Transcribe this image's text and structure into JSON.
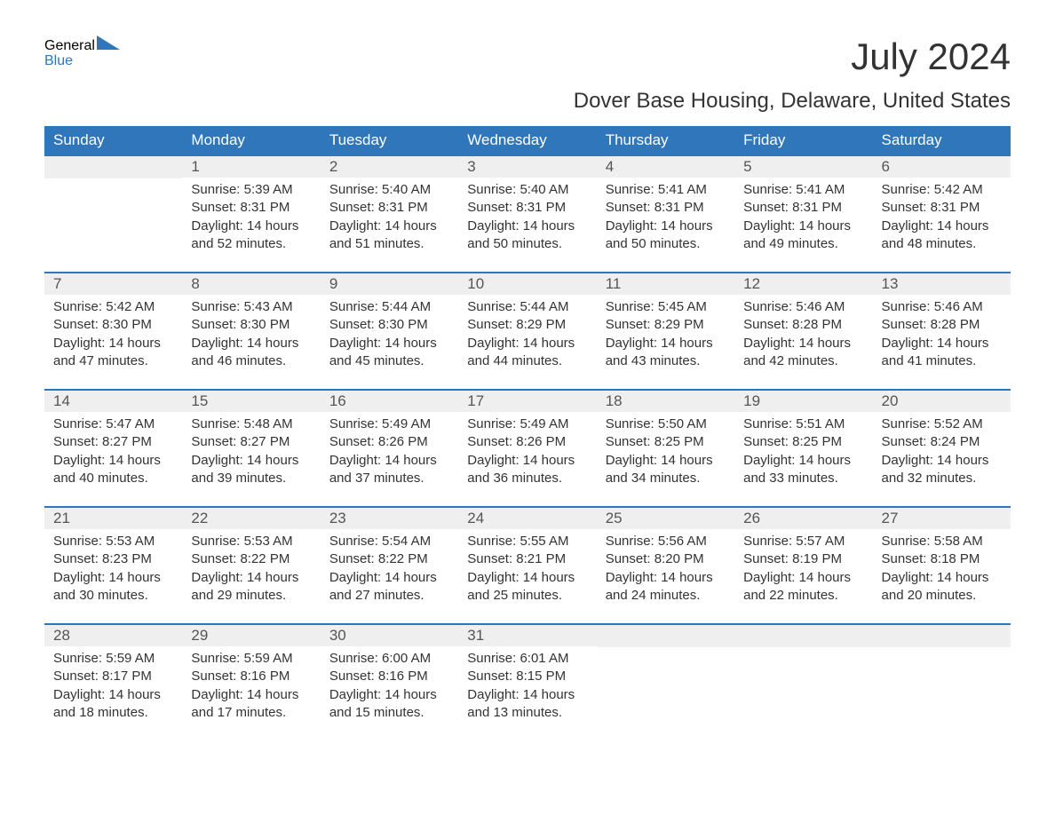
{
  "brand": {
    "word1": "General",
    "word2": "Blue"
  },
  "title": "July 2024",
  "location": "Dover Base Housing, Delaware, United States",
  "colors": {
    "accent": "#2f76bb",
    "headerText": "#ffffff",
    "dayBg": "#efefef",
    "text": "#333333"
  },
  "weekdays": [
    "Sunday",
    "Monday",
    "Tuesday",
    "Wednesday",
    "Thursday",
    "Friday",
    "Saturday"
  ],
  "weeks": [
    [
      null,
      {
        "n": "1",
        "sr": "Sunrise: 5:39 AM",
        "ss": "Sunset: 8:31 PM",
        "d1": "Daylight: 14 hours",
        "d2": "and 52 minutes."
      },
      {
        "n": "2",
        "sr": "Sunrise: 5:40 AM",
        "ss": "Sunset: 8:31 PM",
        "d1": "Daylight: 14 hours",
        "d2": "and 51 minutes."
      },
      {
        "n": "3",
        "sr": "Sunrise: 5:40 AM",
        "ss": "Sunset: 8:31 PM",
        "d1": "Daylight: 14 hours",
        "d2": "and 50 minutes."
      },
      {
        "n": "4",
        "sr": "Sunrise: 5:41 AM",
        "ss": "Sunset: 8:31 PM",
        "d1": "Daylight: 14 hours",
        "d2": "and 50 minutes."
      },
      {
        "n": "5",
        "sr": "Sunrise: 5:41 AM",
        "ss": "Sunset: 8:31 PM",
        "d1": "Daylight: 14 hours",
        "d2": "and 49 minutes."
      },
      {
        "n": "6",
        "sr": "Sunrise: 5:42 AM",
        "ss": "Sunset: 8:31 PM",
        "d1": "Daylight: 14 hours",
        "d2": "and 48 minutes."
      }
    ],
    [
      {
        "n": "7",
        "sr": "Sunrise: 5:42 AM",
        "ss": "Sunset: 8:30 PM",
        "d1": "Daylight: 14 hours",
        "d2": "and 47 minutes."
      },
      {
        "n": "8",
        "sr": "Sunrise: 5:43 AM",
        "ss": "Sunset: 8:30 PM",
        "d1": "Daylight: 14 hours",
        "d2": "and 46 minutes."
      },
      {
        "n": "9",
        "sr": "Sunrise: 5:44 AM",
        "ss": "Sunset: 8:30 PM",
        "d1": "Daylight: 14 hours",
        "d2": "and 45 minutes."
      },
      {
        "n": "10",
        "sr": "Sunrise: 5:44 AM",
        "ss": "Sunset: 8:29 PM",
        "d1": "Daylight: 14 hours",
        "d2": "and 44 minutes."
      },
      {
        "n": "11",
        "sr": "Sunrise: 5:45 AM",
        "ss": "Sunset: 8:29 PM",
        "d1": "Daylight: 14 hours",
        "d2": "and 43 minutes."
      },
      {
        "n": "12",
        "sr": "Sunrise: 5:46 AM",
        "ss": "Sunset: 8:28 PM",
        "d1": "Daylight: 14 hours",
        "d2": "and 42 minutes."
      },
      {
        "n": "13",
        "sr": "Sunrise: 5:46 AM",
        "ss": "Sunset: 8:28 PM",
        "d1": "Daylight: 14 hours",
        "d2": "and 41 minutes."
      }
    ],
    [
      {
        "n": "14",
        "sr": "Sunrise: 5:47 AM",
        "ss": "Sunset: 8:27 PM",
        "d1": "Daylight: 14 hours",
        "d2": "and 40 minutes."
      },
      {
        "n": "15",
        "sr": "Sunrise: 5:48 AM",
        "ss": "Sunset: 8:27 PM",
        "d1": "Daylight: 14 hours",
        "d2": "and 39 minutes."
      },
      {
        "n": "16",
        "sr": "Sunrise: 5:49 AM",
        "ss": "Sunset: 8:26 PM",
        "d1": "Daylight: 14 hours",
        "d2": "and 37 minutes."
      },
      {
        "n": "17",
        "sr": "Sunrise: 5:49 AM",
        "ss": "Sunset: 8:26 PM",
        "d1": "Daylight: 14 hours",
        "d2": "and 36 minutes."
      },
      {
        "n": "18",
        "sr": "Sunrise: 5:50 AM",
        "ss": "Sunset: 8:25 PM",
        "d1": "Daylight: 14 hours",
        "d2": "and 34 minutes."
      },
      {
        "n": "19",
        "sr": "Sunrise: 5:51 AM",
        "ss": "Sunset: 8:25 PM",
        "d1": "Daylight: 14 hours",
        "d2": "and 33 minutes."
      },
      {
        "n": "20",
        "sr": "Sunrise: 5:52 AM",
        "ss": "Sunset: 8:24 PM",
        "d1": "Daylight: 14 hours",
        "d2": "and 32 minutes."
      }
    ],
    [
      {
        "n": "21",
        "sr": "Sunrise: 5:53 AM",
        "ss": "Sunset: 8:23 PM",
        "d1": "Daylight: 14 hours",
        "d2": "and 30 minutes."
      },
      {
        "n": "22",
        "sr": "Sunrise: 5:53 AM",
        "ss": "Sunset: 8:22 PM",
        "d1": "Daylight: 14 hours",
        "d2": "and 29 minutes."
      },
      {
        "n": "23",
        "sr": "Sunrise: 5:54 AM",
        "ss": "Sunset: 8:22 PM",
        "d1": "Daylight: 14 hours",
        "d2": "and 27 minutes."
      },
      {
        "n": "24",
        "sr": "Sunrise: 5:55 AM",
        "ss": "Sunset: 8:21 PM",
        "d1": "Daylight: 14 hours",
        "d2": "and 25 minutes."
      },
      {
        "n": "25",
        "sr": "Sunrise: 5:56 AM",
        "ss": "Sunset: 8:20 PM",
        "d1": "Daylight: 14 hours",
        "d2": "and 24 minutes."
      },
      {
        "n": "26",
        "sr": "Sunrise: 5:57 AM",
        "ss": "Sunset: 8:19 PM",
        "d1": "Daylight: 14 hours",
        "d2": "and 22 minutes."
      },
      {
        "n": "27",
        "sr": "Sunrise: 5:58 AM",
        "ss": "Sunset: 8:18 PM",
        "d1": "Daylight: 14 hours",
        "d2": "and 20 minutes."
      }
    ],
    [
      {
        "n": "28",
        "sr": "Sunrise: 5:59 AM",
        "ss": "Sunset: 8:17 PM",
        "d1": "Daylight: 14 hours",
        "d2": "and 18 minutes."
      },
      {
        "n": "29",
        "sr": "Sunrise: 5:59 AM",
        "ss": "Sunset: 8:16 PM",
        "d1": "Daylight: 14 hours",
        "d2": "and 17 minutes."
      },
      {
        "n": "30",
        "sr": "Sunrise: 6:00 AM",
        "ss": "Sunset: 8:16 PM",
        "d1": "Daylight: 14 hours",
        "d2": "and 15 minutes."
      },
      {
        "n": "31",
        "sr": "Sunrise: 6:01 AM",
        "ss": "Sunset: 8:15 PM",
        "d1": "Daylight: 14 hours",
        "d2": "and 13 minutes."
      },
      null,
      null,
      null
    ]
  ]
}
